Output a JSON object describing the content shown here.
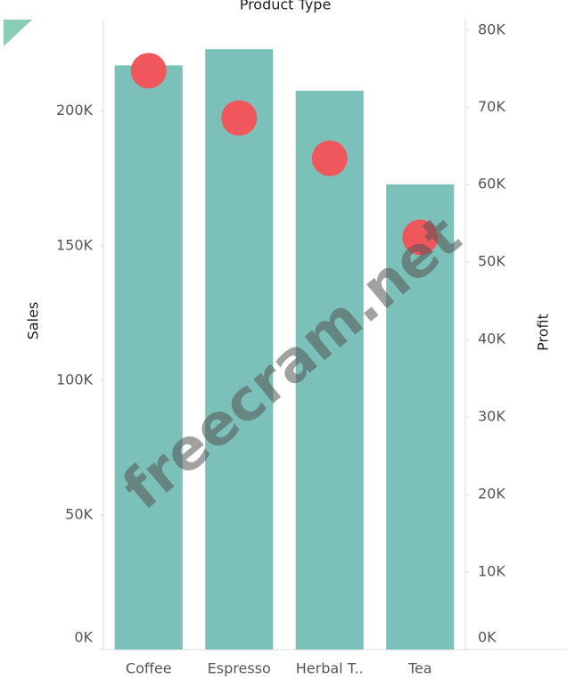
{
  "chart_data": {
    "type": "bar",
    "title": "Product Type",
    "categories": [
      "Coffee",
      "Espresso",
      "Herbal T..",
      "Tea"
    ],
    "series": [
      {
        "name": "Sales",
        "color": "#7cc1b9",
        "mark": "bar",
        "values": [
          217000,
          223000,
          207600,
          172800
        ]
      },
      {
        "name": "Profit",
        "color": "#f0575d",
        "mark": "circle",
        "axis": "y2",
        "values": [
          74700,
          68600,
          63400,
          53200
        ]
      }
    ],
    "ylabel": "Sales",
    "y2label": "Profit",
    "ylim": [
      0,
      234000
    ],
    "yticks": [
      {
        "value": 0,
        "label": "0K"
      },
      {
        "value": 50000,
        "label": "50K"
      },
      {
        "value": 100000,
        "label": "100K"
      },
      {
        "value": 150000,
        "label": "150K"
      },
      {
        "value": 200000,
        "label": "200K"
      }
    ],
    "y2lim": [
      0,
      81300
    ],
    "y2ticks": [
      {
        "value": 0,
        "label": "0K"
      },
      {
        "value": 10000,
        "label": "10K"
      },
      {
        "value": 20000,
        "label": "20K"
      },
      {
        "value": 30000,
        "label": "30K"
      },
      {
        "value": 40000,
        "label": "40K"
      },
      {
        "value": 50000,
        "label": "50K"
      },
      {
        "value": 60000,
        "label": "60K"
      },
      {
        "value": 70000,
        "label": "70K"
      },
      {
        "value": 80000,
        "label": "80K"
      }
    ],
    "watermark": "freecram.net"
  }
}
